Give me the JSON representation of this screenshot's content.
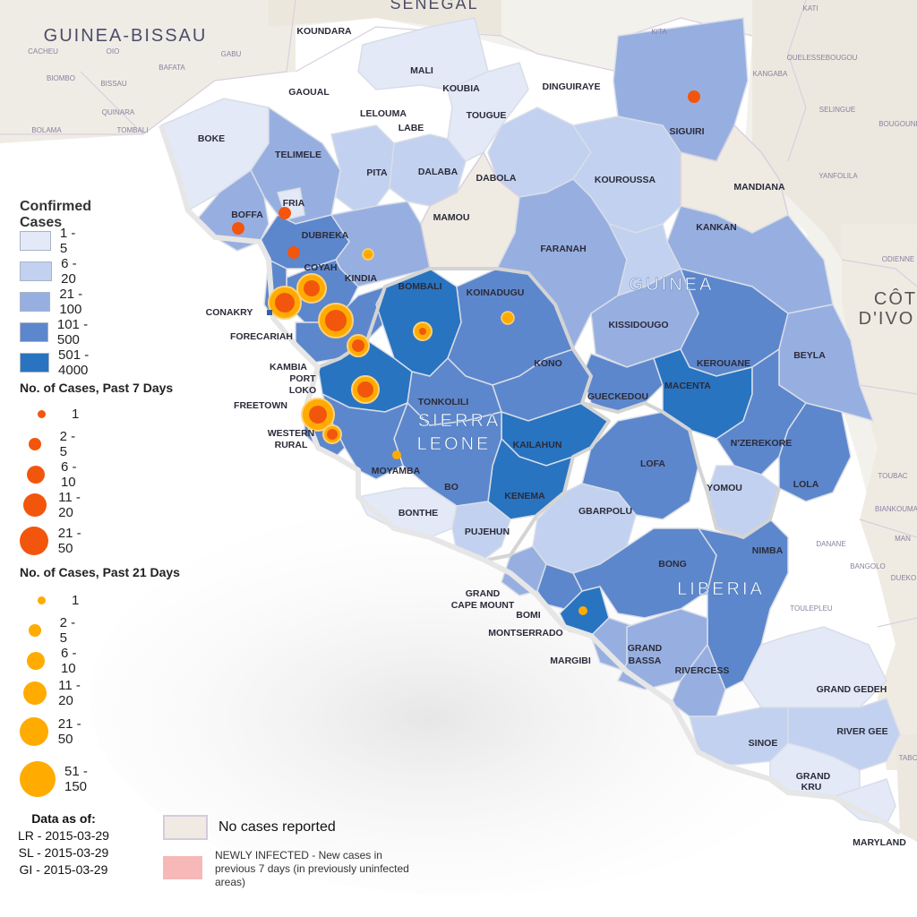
{
  "countries": {
    "guinea": "GUINEA",
    "sierra_leone_1": "SIERRA",
    "sierra_leone_2": "LEONE",
    "liberia": "LIBERIA",
    "guinea_bissau": "GUINEA-BISSAU",
    "senegal": "SENEGAL",
    "cote_divoire_1": "CÔT",
    "cote_divoire_2": "D'IVO"
  },
  "districts": [
    "KOUNDARA",
    "MALI",
    "KOUBIA",
    "TOUGUE",
    "DINGUIRAYE",
    "SIGUIRI",
    "GAOUAL",
    "LELOUMA",
    "LABE",
    "BOKE",
    "TELIMELE",
    "PITA",
    "DALABA",
    "DABOLA",
    "KOUROUSSA",
    "MANDIANA",
    "FRIA",
    "BOFFA",
    "DUBREKA",
    "MAMOU",
    "KANKAN",
    "FARANAH",
    "COYAH",
    "KINDIA",
    "CONAKRY",
    "FORECARIAH",
    "BOMBALI",
    "KOINADUGU",
    "KISSIDOUGO",
    "BEYLA",
    "KEROUANE",
    "KAMBIA",
    "PORT",
    "LOKO",
    "KONO",
    "TONKOLILI",
    "GUECKEDOU",
    "MACENTA",
    "FREETOWN",
    "WESTERN",
    "RURAL",
    "KAILAHUN",
    "N'ZEREKORE",
    "MOYAMBA",
    "BO",
    "LOFA",
    "KENEMA",
    "LOLA",
    "BONTHE",
    "GBARPOLU",
    "YOMOU",
    "PUJEHUN",
    "NIMBA",
    "BONG",
    "GRAND",
    "CAPE MOUNT",
    "BOMI",
    "MONTSERRADO",
    "MARGIBI",
    "GRAND",
    "BASSA",
    "RIVERCESS",
    "GRAND GEDEH",
    "RIVER GEE",
    "SINOE",
    "GRAND",
    "KRU",
    "MARYLAND"
  ],
  "towns": [
    "CACHEU",
    "OIO",
    "GABU",
    "BAFATA",
    "BIOMBO",
    "BISSAU",
    "QUINARA",
    "BOLAMA",
    "TOMBALI",
    "KATI",
    "KITA",
    "KANGABA",
    "OUELESSEBOUGOU",
    "SELINGUE",
    "BOUGOUNI",
    "YANFOLILA",
    "ODIENNE",
    "TOUBAC",
    "BIANKOUMA",
    "DANANE",
    "MAN",
    "BANGOLO",
    "DUEKO",
    "TOULEPLEU",
    "TABC"
  ],
  "legend": {
    "confirmed_title": "Confirmed Cases",
    "confirmed": [
      {
        "label": "1 - 5",
        "color": "#e3e9f7"
      },
      {
        "label": "6 - 20",
        "color": "#c2d1ef"
      },
      {
        "label": "21 - 100",
        "color": "#97afe0"
      },
      {
        "label": "101 - 500",
        "color": "#5d87cc"
      },
      {
        "label": "501 - 4000",
        "color": "#2874c0"
      }
    ],
    "past7_title": "No. of Cases, Past 7 Days",
    "past7": [
      {
        "label": "1"
      },
      {
        "label": "2 - 5"
      },
      {
        "label": "6 - 10"
      },
      {
        "label": "11 - 20"
      },
      {
        "label": "21 - 50"
      }
    ],
    "past7_color": "#f2560d",
    "past21_title": "No. of Cases, Past 21 Days",
    "past21": [
      {
        "label": "1"
      },
      {
        "label": "2 - 5"
      },
      {
        "label": "6 - 10"
      },
      {
        "label": "11 - 20"
      },
      {
        "label": "21 - 50"
      },
      {
        "label": "51 - 150"
      }
    ],
    "past21_color": "#ffab00",
    "asof_title": "Data as of:",
    "asof": [
      "LR - 2015-03-29",
      "SL - 2015-03-29",
      "GI - 2015-03-29"
    ],
    "no_cases": "No cases reported",
    "no_cases_color": "#efebe2",
    "newly": "NEWLY INFECTED - New cases in previous 7 days (in previously uninfected areas)",
    "newly_color": "#f7b8b8"
  }
}
